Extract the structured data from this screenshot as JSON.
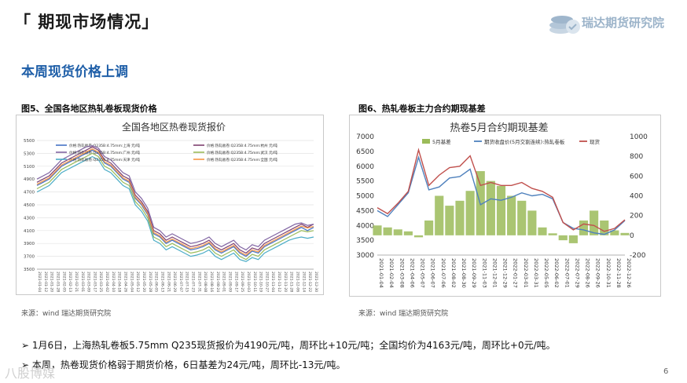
{
  "header": {
    "title": "「 期现市场情况」",
    "logo_text": "瑞达期货研究院"
  },
  "subtitle": "本周现货价格上调",
  "figures": {
    "fig5_label": "图5、全国各地区热轧卷板现货价格",
    "fig6_label": "图6、热轧卷板主力合约期现基差",
    "source5": "来源：wind   瑞达期货研究院",
    "source6": "来源：wind   瑞达期货研究院"
  },
  "bullets": [
    "➢  1月6日，上海热轧卷板5.75mm Q235现货报价为4190元/吨，周环比+10元/吨；全国均价为4163元/吨，周环比+0元/吨。",
    "➢  本周，热卷现货价格弱于期货价格，6日基差为24元/吨，周环比-13元/吨。"
  ],
  "page_number": "6",
  "watermark": "八股博媒",
  "chart_data": [
    {
      "type": "line",
      "title": "全国各地区热卷现货报价",
      "ylim": [
        3500,
        5500
      ],
      "yticks": [
        3500,
        3700,
        3900,
        4100,
        4300,
        4500,
        4700,
        4900,
        5100,
        5300,
        5500
      ],
      "x": [
        "2021-01-04",
        "2021-01-12",
        "2021-01-20",
        "2021-01-28",
        "2021-02-05",
        "2021-02-13",
        "2021-02-21",
        "2021-03-01",
        "2021-03-09",
        "2021-03-17",
        "2021-03-25",
        "2021-04-02",
        "2021-04-10",
        "2021-04-18",
        "2021-04-26",
        "2021-05-04",
        "2021-05-12",
        "2021-05-20",
        "2021-05-28",
        "2021-06-05",
        "2021-06-13",
        "2021-06-21",
        "2021-06-29",
        "2021-07-07",
        "2021-07-15",
        "2021-07-23",
        "2021-07-31",
        "2021-08-08",
        "2021-08-16",
        "2021-08-24",
        "2021-09-01",
        "2021-09-09",
        "2021-09-17",
        "2021-09-25",
        "2021-10-03",
        "2021-10-11",
        "2021-10-19",
        "2021-10-27",
        "2021-11-04",
        "2021-11-12",
        "2021-11-20",
        "2021-11-28",
        "2021-12-06",
        "2021-12-14",
        "2021-12-22",
        "2021-12-30"
      ],
      "series": [
        {
          "name": "价格:热轧板卷:Q235B:4.75mm:上海  元/吨",
          "color": "#4472c4",
          "values": [
            4800,
            4850,
            4900,
            5000,
            5100,
            5150,
            5200,
            5250,
            5300,
            5350,
            5300,
            5150,
            5100,
            5000,
            4900,
            4850,
            4600,
            4500,
            4350,
            4050,
            4000,
            3900,
            3950,
            3900,
            3850,
            3800,
            3820,
            3850,
            3900,
            3800,
            3750,
            3800,
            3850,
            3750,
            3700,
            3780,
            3750,
            3850,
            3900,
            3950,
            4000,
            4050,
            4100,
            4150,
            4100,
            4150
          ]
        },
        {
          "name": "价格:热轧板卷:Q235B:4.75mm:杭州  元/吨",
          "color": "#7f3f6f",
          "values": [
            4850,
            4900,
            4950,
            5050,
            5150,
            5200,
            5250,
            5300,
            5350,
            5400,
            5350,
            5200,
            5150,
            5050,
            4950,
            4900,
            4650,
            4550,
            4400,
            4100,
            4050,
            3950,
            4000,
            3950,
            3900,
            3850,
            3870,
            3900,
            3950,
            3850,
            3800,
            3850,
            3900,
            3800,
            3750,
            3830,
            3800,
            3900,
            3950,
            4000,
            4050,
            4100,
            4150,
            4200,
            4150,
            4200
          ]
        },
        {
          "name": "价格:热轧板卷:Q235B:4.75mm:广州  元/吨",
          "color": "#8064a2",
          "values": [
            4900,
            4950,
            5000,
            5100,
            5200,
            5250,
            5300,
            5350,
            5400,
            5420,
            5380,
            5250,
            5200,
            5100,
            5000,
            4950,
            4700,
            4600,
            4450,
            4150,
            4100,
            4000,
            4050,
            4000,
            3950,
            3900,
            3920,
            3950,
            4000,
            3900,
            3850,
            3900,
            3950,
            3850,
            3800,
            3880,
            3850,
            3950,
            4000,
            4050,
            4100,
            4150,
            4200,
            4220,
            4180,
            4200
          ]
        },
        {
          "name": "价格:热轧板卷:Q235B:4.75mm:武汉  元/吨",
          "color": "#9bbb59",
          "values": [
            4750,
            4800,
            4850,
            4950,
            5050,
            5100,
            5150,
            5200,
            5250,
            5300,
            5250,
            5100,
            5050,
            4950,
            4850,
            4800,
            4550,
            4450,
            4300,
            4000,
            3950,
            3850,
            3900,
            3850,
            3800,
            3750,
            3770,
            3800,
            3850,
            3750,
            3700,
            3750,
            3800,
            3700,
            3650,
            3730,
            3700,
            3800,
            3850,
            3900,
            3950,
            4000,
            4050,
            4100,
            4080,
            4100
          ]
        },
        {
          "name": "价格:热轧板卷:Q235B:4.75mm:天津  元/吨",
          "color": "#4bacc6",
          "values": [
            4700,
            4750,
            4800,
            4900,
            5000,
            5050,
            5100,
            5150,
            5200,
            5250,
            5200,
            5050,
            5000,
            4900,
            4800,
            4750,
            4500,
            4400,
            4250,
            3950,
            3900,
            3800,
            3850,
            3800,
            3750,
            3700,
            3720,
            3750,
            3800,
            3700,
            3650,
            3700,
            3750,
            3650,
            3620,
            3680,
            3650,
            3750,
            3800,
            3850,
            3900,
            3950,
            3980,
            4000,
            3980,
            4000
          ]
        },
        {
          "name": "价格:热轧板卷:Q235B:4.75mm:全国  元/吨",
          "color": "#f79646",
          "values": [
            4820,
            4870,
            4920,
            5020,
            5120,
            5170,
            5220,
            5270,
            5320,
            5370,
            5320,
            5170,
            5120,
            5020,
            4920,
            4870,
            4620,
            4520,
            4370,
            4070,
            4020,
            3920,
            3970,
            3920,
            3870,
            3820,
            3840,
            3870,
            3920,
            3820,
            3770,
            3820,
            3870,
            3770,
            3720,
            3800,
            3770,
            3870,
            3920,
            3970,
            4020,
            4070,
            4120,
            4170,
            4140,
            4163
          ]
        }
      ]
    },
    {
      "type": "line",
      "title": "热卷5月合约期现基差",
      "ylim_left": [
        3000,
        7000
      ],
      "yticks_left": [
        3000,
        3500,
        4000,
        4500,
        5000,
        5500,
        6000,
        6500,
        7000
      ],
      "ylim_right": [
        -200,
        1000
      ],
      "yticks_right": [
        -200,
        0,
        200,
        400,
        600,
        800,
        1000
      ],
      "x": [
        "2021-01-04",
        "2021-02-04",
        "2021-03-08",
        "2021-04-06",
        "2021-05-07",
        "2021-06-07",
        "2021-07-06",
        "2021-08-02",
        "2021-08-30",
        "2021-09-29",
        "2021-11-03",
        "2021-12-01",
        "2021-12-29",
        "2022-01-27",
        "2022-03-01",
        "2022-03-31",
        "2022-05-05",
        "2022-06-02",
        "2022-07-01",
        "2022-07-29",
        "2022-08-26",
        "2022-09-26",
        "2022-10-31",
        "2022-11-28",
        "2022-12-26"
      ],
      "series": [
        {
          "name": "5月基差",
          "axis": "right",
          "kind": "bar",
          "color": "#9bbb59",
          "values": [
            100,
            80,
            60,
            40,
            -20,
            150,
            400,
            300,
            350,
            450,
            650,
            550,
            500,
            400,
            350,
            250,
            80,
            20,
            -50,
            -80,
            150,
            250,
            150,
            50,
            24
          ]
        },
        {
          "name": "期货收盘价(5月交割连续):热轧卷板",
          "axis": "left",
          "color": "#4f81bd",
          "values": [
            4500,
            4300,
            4700,
            5100,
            6300,
            5200,
            5300,
            5600,
            5650,
            5900,
            4700,
            4900,
            4850,
            4950,
            5100,
            5000,
            5050,
            4900,
            4100,
            3900,
            3850,
            3750,
            3700,
            3850,
            4166
          ]
        },
        {
          "name": "现货",
          "axis": "left",
          "color": "#c0504d",
          "values": [
            4600,
            4400,
            4750,
            5150,
            6550,
            5350,
            5700,
            5950,
            6000,
            6350,
            5350,
            5450,
            5350,
            5350,
            5450,
            5250,
            5150,
            4950,
            4100,
            3850,
            4050,
            4000,
            3800,
            3900,
            4190
          ]
        }
      ]
    }
  ]
}
